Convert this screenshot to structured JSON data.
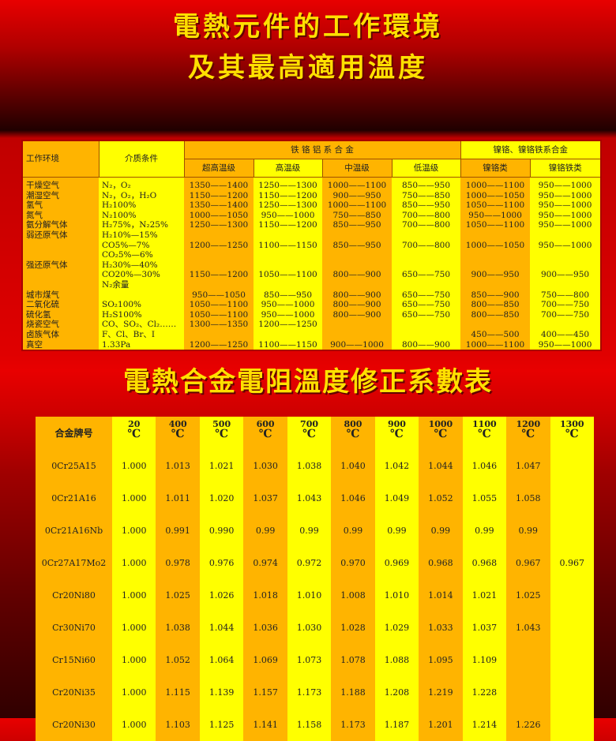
{
  "titles": {
    "line1": "電熱元件的工作環境",
    "line2": "及其最高適用溫度",
    "line3": "電熱合金電阻溫度修正系數表"
  },
  "env_table": {
    "headers": {
      "env": "工作环境",
      "medium": "介质条件",
      "group1": "铁 铬 铝 系 合 金",
      "group2": "镍铬、镍铬铁系合金",
      "sub": [
        "超高温级",
        "高温级",
        "中温级",
        "低温级",
        "镍铬类",
        "镍铬铁类"
      ]
    },
    "rows": [
      [
        "干燥空气",
        "N₂，O₂",
        "1350——1400",
        "1250——1300",
        "1000——1100",
        "850——950",
        "1000——1100",
        "950——1000"
      ],
      [
        "潮湿空气",
        "N₂，O₂，H₂O",
        "1150——1200",
        "1150——1200",
        "900——950",
        "750——850",
        "1000——1050",
        "950——1000"
      ],
      [
        "氢气",
        "H₂100%",
        "1350——1400",
        "1250——1300",
        "1000——1100",
        "850——950",
        "1050——1100",
        "950——1000"
      ],
      [
        "氮气",
        "N₂100%",
        "1000——1050",
        "950——1000",
        "750——850",
        "700——800",
        "950——1000",
        "950——1000"
      ],
      [
        "氨分解气体",
        "H₂75%，N₂25%",
        "1250——1300",
        "1150——1200",
        "850——950",
        "700——800",
        "1050——1100",
        "950——1000"
      ],
      [
        "弱还原气体",
        "H₂10%—15%",
        "",
        "",
        "",
        "",
        "",
        ""
      ],
      [
        "",
        "CO5%—7%",
        "1200——1250",
        "1100——1150",
        "850——950",
        "700——800",
        "1000——1050",
        "950——1000"
      ],
      [
        "",
        "CO₂5%—6%",
        "",
        "",
        "",
        "",
        "",
        ""
      ],
      [
        "强还原气体",
        "H₂30%—40%",
        "",
        "",
        "",
        "",
        "",
        ""
      ],
      [
        "",
        "CO20%—30%",
        "1150——1200",
        "1050——1100",
        "800——900",
        "650——750",
        "900——950",
        "900——950"
      ],
      [
        "",
        "N₂余量",
        "",
        "",
        "",
        "",
        "",
        ""
      ],
      [
        "城市煤气",
        "",
        "950——1050",
        "850——950",
        "800——900",
        "650——750",
        "850——900",
        "750——800"
      ],
      [
        "二氧化硫",
        "SO₂100%",
        "1050——1100",
        "950——1000",
        "800——900",
        "650——750",
        "800——850",
        "700——750"
      ],
      [
        "硫化氢",
        "H₂S100%",
        "1050——1100",
        "950——1000",
        "800——900",
        "650——750",
        "800——850",
        "700——750"
      ],
      [
        "烧瓷空气",
        "CO、SO₂、Cl₂……",
        "1300——1350",
        "1200——1250",
        "",
        "",
        "",
        ""
      ],
      [
        "卤族气体",
        "F、Cl、Br、I",
        "",
        "",
        "",
        "",
        "450——500",
        "400——450"
      ],
      [
        "真空",
        "1.33Pa",
        "1200——1250",
        "1100——1150",
        "900——1000",
        "800——900",
        "1000——1100",
        "950——1000"
      ]
    ]
  },
  "coef_table": {
    "name_header": "合金牌号",
    "unit": "℃",
    "temps": [
      "20",
      "400",
      "500",
      "600",
      "700",
      "800",
      "900",
      "1000",
      "1100",
      "1200",
      "1300"
    ],
    "rows": [
      [
        "0Cr25A15",
        "1.000",
        "1.013",
        "1.021",
        "1.030",
        "1.038",
        "1.040",
        "1.042",
        "1.044",
        "1.046",
        "1.047",
        ""
      ],
      [
        "0Cr21A16",
        "1.000",
        "1.011",
        "1.020",
        "1.037",
        "1.043",
        "1.046",
        "1.049",
        "1.052",
        "1.055",
        "1.058",
        ""
      ],
      [
        "0Cr21A16Nb",
        "1.000",
        "0.991",
        "0.990",
        "0.99",
        "0.99",
        "0.99",
        "0.99",
        "0.99",
        "0.99",
        "0.99",
        ""
      ],
      [
        "0Cr27A17Mo2",
        "1.000",
        "0.978",
        "0.976",
        "0.974",
        "0.972",
        "0.970",
        "0.969",
        "0.968",
        "0.968",
        "0.967",
        "0.967"
      ],
      [
        "Cr20Ni80",
        "1.000",
        "1.025",
        "1.026",
        "1.018",
        "1.010",
        "1.008",
        "1.010",
        "1.014",
        "1.021",
        "1.025",
        ""
      ],
      [
        "Cr30Ni70",
        "1.000",
        "1.038",
        "1.044",
        "1.036",
        "1.030",
        "1.028",
        "1.029",
        "1.033",
        "1.037",
        "1.043",
        ""
      ],
      [
        "Cr15Ni60",
        "1.000",
        "1.052",
        "1.064",
        "1.069",
        "1.073",
        "1.078",
        "1.088",
        "1.095",
        "1.109",
        "",
        ""
      ],
      [
        "Cr20Ni35",
        "1.000",
        "1.115",
        "1.139",
        "1.157",
        "1.173",
        "1.188",
        "1.208",
        "1.219",
        "1.228",
        "",
        ""
      ],
      [
        "Cr20Ni30",
        "1.000",
        "1.103",
        "1.125",
        "1.141",
        "1.158",
        "1.173",
        "1.187",
        "1.201",
        "1.214",
        "1.226",
        ""
      ]
    ]
  },
  "colors": {
    "orange": "#ffb400",
    "yellow": "#ffff00",
    "title": "#ffe000",
    "background": "#e00000"
  }
}
